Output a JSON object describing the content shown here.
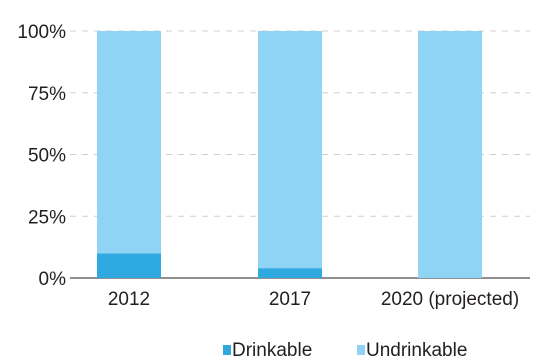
{
  "chart_data": {
    "type": "bar",
    "stacked": true,
    "categories": [
      "2012",
      "2017",
      "2020 (projected)"
    ],
    "series": [
      {
        "name": "Drinkable",
        "values": [
          10,
          4,
          0
        ],
        "color": "#2eaae1"
      },
      {
        "name": "Undrinkable",
        "values": [
          90,
          96,
          100
        ],
        "color": "#8fd3f5"
      }
    ],
    "ylim": [
      0,
      100
    ],
    "yticks": [
      0,
      25,
      50,
      75,
      100
    ],
    "ytick_labels": [
      "0%",
      "25%",
      "50%",
      "75%",
      "100%"
    ],
    "grid": true,
    "grid_style": "dashed",
    "legend_position": "bottom-center"
  }
}
